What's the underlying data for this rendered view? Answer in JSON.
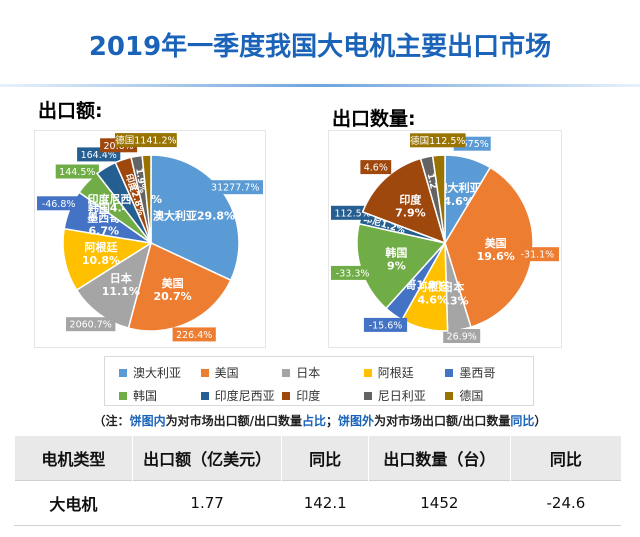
{
  "page_title": "2019年一季度我国大电机主要出口市场",
  "colors": {
    "澳大利亚": "#5b9bd5",
    "美国": "#ed7d31",
    "日本": "#a5a5a5",
    "阿根廷": "#ffc000",
    "墨西哥": "#4472c4",
    "韩国": "#70ad47",
    "印度尼西亚": "#255e91",
    "印度": "#9e480e",
    "尼日利亚": "#636363",
    "德国": "#997300"
  },
  "legend": [
    "澳大利亚",
    "美国",
    "日本",
    "阿根廷",
    "墨西哥",
    "韩国",
    "印度尼西亚",
    "印度",
    "尼日利亚",
    "德国"
  ],
  "note": {
    "prefix": "（注：",
    "a1": "饼图内",
    "a2": "为对市场出口额/出口数量",
    "a3": "占比",
    "a4": "；",
    "b1": "饼图外",
    "b2": "为对市场出口额/出口数量",
    "b3": "同比",
    "suffix": "）"
  },
  "table": {
    "headers": [
      "电机类型",
      "出口额（亿美元）",
      "同比",
      "出口数量（台）",
      "同比"
    ],
    "rows": [
      [
        "大电机",
        "1.77",
        "142.1",
        "1452",
        "-24.6"
      ]
    ]
  },
  "chart_data": [
    {
      "type": "pie",
      "title": "出口额:",
      "slices": [
        {
          "name": "澳大利亚",
          "inner": "澳大利亚29.8%",
          "value": 29.8,
          "outer": "31277.7%"
        },
        {
          "name": "美国",
          "inner": "美国 20.7%",
          "value": 20.7,
          "outer": "226.4%"
        },
        {
          "name": "日本",
          "inner": "日本 11.1%",
          "value": 11.1,
          "outer": "2060.7%"
        },
        {
          "name": "阿根廷",
          "inner": "阿根廷 10.8%",
          "value": 10.8,
          "outer": ""
        },
        {
          "name": "墨西哥",
          "inner": "墨西哥 6.7%",
          "value": 6.7,
          "outer": "-46.8%"
        },
        {
          "name": "韩国",
          "inner": "韩国4.4%",
          "value": 4.4,
          "outer": "144.5%"
        },
        {
          "name": "印度尼西亚",
          "inner": "印度尼西3.6%",
          "value": 3.6,
          "outer": "164.4%"
        },
        {
          "name": "印度",
          "inner": "印度2.8%",
          "value": 2.8,
          "outer": "20.6%"
        },
        {
          "name": "尼日利亚",
          "inner": "1.9%",
          "value": 1.9,
          "outer": ""
        },
        {
          "name": "德国",
          "inner": "",
          "value": 1.5,
          "outer": "德国1141.2%"
        }
      ]
    },
    {
      "type": "pie",
      "title": "出口数量:",
      "slices": [
        {
          "name": "澳大利亚",
          "inner": "澳大利亚 4.6%",
          "value": 4.6,
          "outer": "1575%"
        },
        {
          "name": "美国",
          "inner": "美国 19.6%",
          "value": 19.6,
          "outer": "-31.1%"
        },
        {
          "name": "日本",
          "inner": "日本 2.3%",
          "value": 2.3,
          "outer": "26.9%"
        },
        {
          "name": "阿根廷",
          "inner": "阿根廷 4.6%",
          "value": 4.6,
          "outer": ""
        },
        {
          "name": "墨西哥",
          "inner": "墨西哥1.9%",
          "value": 1.9,
          "outer": "-15.6%"
        },
        {
          "name": "韩国",
          "inner": "韩国 9%",
          "value": 9.0,
          "outer": "-33.3%"
        },
        {
          "name": "印度尼西亚",
          "inner": "印尼1.2%",
          "value": 1.2,
          "outer": "112.5%"
        },
        {
          "name": "印度",
          "inner": "印度 7.9%",
          "value": 7.9,
          "outer": "4.6%"
        },
        {
          "name": "尼日利亚",
          "inner": "1.2",
          "value": 1.2,
          "outer": ""
        },
        {
          "name": "德国",
          "inner": "",
          "value": 1.2,
          "outer": "德国112.5%"
        }
      ]
    }
  ]
}
